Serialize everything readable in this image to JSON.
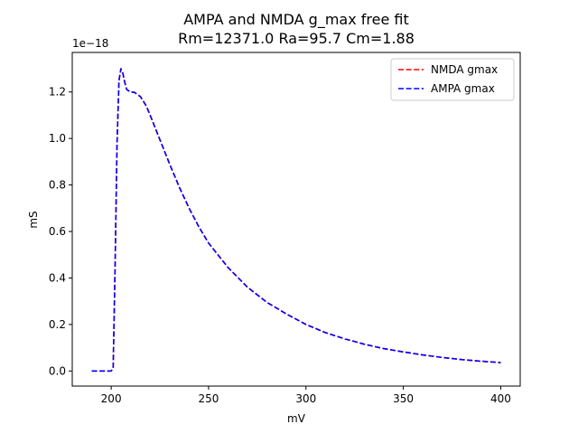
{
  "chart_data": {
    "type": "line",
    "title": "AMPA and NMDA g_max free fit",
    "subtitle": "Rm=12371.0 Ra=95.7 Cm=1.88",
    "xlabel": "mV",
    "ylabel": "mS",
    "y_offset_label": "1e−18",
    "xlim": [
      180,
      410
    ],
    "ylim": [
      -0.065,
      1.37
    ],
    "x_ticks": [
      200,
      250,
      300,
      350,
      400
    ],
    "x_tick_labels": [
      "200",
      "250",
      "300",
      "350",
      "400"
    ],
    "y_ticks": [
      0.0,
      0.2,
      0.4,
      0.6,
      0.8,
      1.0,
      1.2
    ],
    "y_tick_labels": [
      "0.0",
      "0.2",
      "0.4",
      "0.6",
      "0.8",
      "1.0",
      "1.2"
    ],
    "y_scale_factor": 1e-18,
    "grid": false,
    "legend_position": "top-right",
    "series": [
      {
        "name": "NMDA gmax",
        "color": "#ff0000",
        "style": "dashed",
        "x": [
          190,
          200,
          201,
          202,
          203,
          204,
          205,
          206,
          207,
          208,
          209,
          210,
          212,
          215,
          218,
          220,
          225,
          230,
          235,
          240,
          245,
          250,
          260,
          270,
          280,
          290,
          300,
          310,
          320,
          330,
          340,
          350,
          360,
          370,
          380,
          390,
          400
        ],
        "y": [
          0.0,
          0.0,
          0.01,
          0.45,
          0.98,
          1.25,
          1.3,
          1.28,
          1.24,
          1.21,
          1.205,
          1.2,
          1.198,
          1.18,
          1.14,
          1.1,
          0.995,
          0.89,
          0.79,
          0.7,
          0.62,
          0.55,
          0.445,
          0.36,
          0.295,
          0.245,
          0.2,
          0.165,
          0.138,
          0.115,
          0.096,
          0.082,
          0.069,
          0.058,
          0.049,
          0.042,
          0.036
        ]
      },
      {
        "name": "AMPA gmax",
        "color": "#0000ff",
        "style": "dashed",
        "x": [
          190,
          200,
          201,
          202,
          203,
          204,
          205,
          206,
          207,
          208,
          209,
          210,
          212,
          215,
          218,
          220,
          225,
          230,
          235,
          240,
          245,
          250,
          260,
          270,
          280,
          290,
          300,
          310,
          320,
          330,
          340,
          350,
          360,
          370,
          380,
          390,
          400
        ],
        "y": [
          0.0,
          0.0,
          0.01,
          0.45,
          0.98,
          1.25,
          1.3,
          1.28,
          1.24,
          1.21,
          1.205,
          1.2,
          1.198,
          1.18,
          1.14,
          1.1,
          0.995,
          0.89,
          0.79,
          0.7,
          0.62,
          0.55,
          0.445,
          0.36,
          0.295,
          0.245,
          0.2,
          0.165,
          0.138,
          0.115,
          0.096,
          0.082,
          0.069,
          0.058,
          0.049,
          0.042,
          0.036
        ]
      }
    ]
  }
}
